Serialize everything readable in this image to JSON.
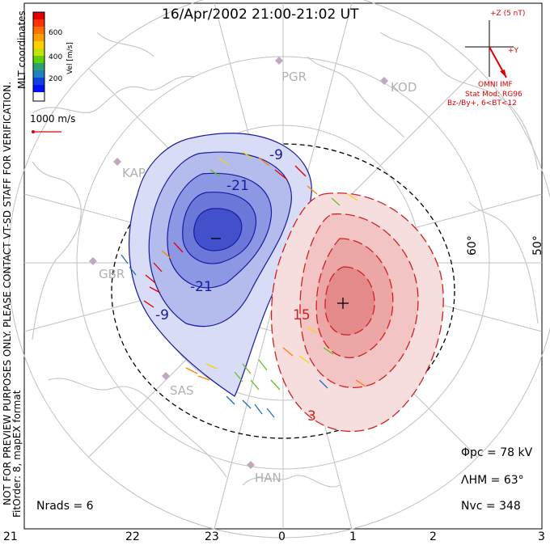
{
  "title": "16/Apr/2002 21:00-21:02 UT",
  "colorbar": {
    "label": "Vel [m/s]",
    "ticks": [
      "600",
      "400",
      "200"
    ],
    "colors": [
      "#e00000",
      "#ff3000",
      "#ff7000",
      "#ffa000",
      "#ffd000",
      "#c8e000",
      "#60d000",
      "#30a070",
      "#2080c0",
      "#1040e0",
      "#0010ff"
    ]
  },
  "scale_vector_label": "1000 m/s",
  "imf": {
    "z_label": "+Z (5 nT)",
    "y_label": "+Y",
    "omni": "OMNI IMF",
    "stat_mod": "Stat Mod: RG96",
    "condition": "Bz-/By+, 6<BT<12"
  },
  "side_text": {
    "coordinates": "MLT coordinates",
    "verification": "NOT FOR PREVIEW PURPOSES ONLY. PLEASE CONTACT VT-SD STAFF FOR VERIFICATION.",
    "fit": "FitOrder: 8, mapEX format"
  },
  "sites": [
    "PGR",
    "KOD",
    "KAP",
    "GBR",
    "SAS",
    "HAN"
  ],
  "latitude_labels": [
    "60°",
    "50°"
  ],
  "contour_labels": {
    "neg": [
      "-9",
      "-21",
      "-21",
      "-9"
    ],
    "pos": [
      "15",
      "3"
    ]
  },
  "stats": {
    "phi_pc": "Φpc = 78 kV",
    "lambda_hm": "ΛHM = 63°",
    "n_vc": "Nvc = 348",
    "n_rads": "Nrads = 6"
  },
  "mlt_ticks": [
    "21",
    "22",
    "23",
    "0",
    "1",
    "2",
    "3"
  ]
}
